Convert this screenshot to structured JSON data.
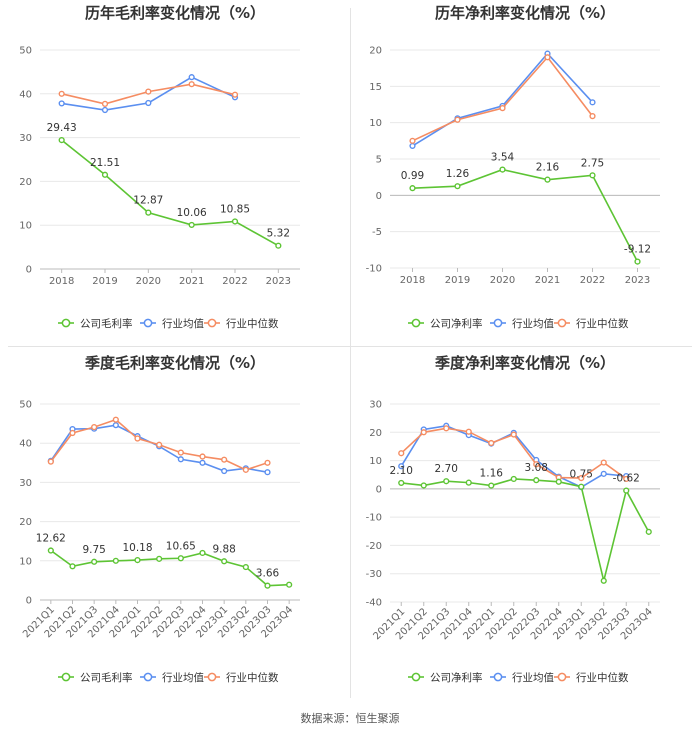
{
  "source": "数据来源：恒生聚源",
  "legend": {
    "company_gross": "公司毛利率",
    "company_net": "公司净利率",
    "industry_avg": "行业均值",
    "industry_median": "行业中位数"
  },
  "colors": {
    "company": "#5dc434",
    "industry_avg": "#5b8ff0",
    "industry_median": "#f58c62",
    "grid": "#e8e8e8",
    "axis": "#bbbbbb"
  },
  "chart_data": [
    {
      "type": "line",
      "title": "历年毛利率变化情况（%）",
      "categories": [
        "2018",
        "2019",
        "2020",
        "2021",
        "2022",
        "2023"
      ],
      "ylim": [
        0,
        50
      ],
      "yticks": [
        0,
        10,
        20,
        30,
        40,
        50
      ],
      "series": [
        {
          "name": "公司毛利率",
          "values": [
            29.43,
            21.51,
            12.87,
            10.06,
            10.85,
            5.32
          ],
          "labels": [
            "29.43",
            "21.51",
            "12.87",
            "10.06",
            "10.85",
            "5.32"
          ]
        },
        {
          "name": "行业均值",
          "values": [
            37.8,
            36.3,
            37.9,
            43.8,
            39.2,
            null
          ]
        },
        {
          "name": "行业中位数",
          "values": [
            40.0,
            37.7,
            40.5,
            42.2,
            39.8,
            null
          ]
        }
      ]
    },
    {
      "type": "line",
      "title": "历年净利率变化情况（%）",
      "categories": [
        "2018",
        "2019",
        "2020",
        "2021",
        "2022",
        "2023"
      ],
      "ylim": [
        -10,
        20
      ],
      "yticks": [
        -10,
        -5,
        0,
        5,
        10,
        15,
        20
      ],
      "series": [
        {
          "name": "公司净利率",
          "values": [
            0.99,
            1.26,
            3.54,
            2.16,
            2.75,
            -9.12
          ],
          "labels": [
            "0.99",
            "1.26",
            "3.54",
            "2.16",
            "2.75",
            "-9.12"
          ]
        },
        {
          "name": "行业均值",
          "values": [
            6.8,
            10.6,
            12.3,
            19.5,
            12.8,
            null
          ]
        },
        {
          "name": "行业中位数",
          "values": [
            7.5,
            10.4,
            12.0,
            19.0,
            10.9,
            null
          ]
        }
      ]
    },
    {
      "type": "line",
      "title": "季度毛利率变化情况（%）",
      "categories": [
        "2021Q1",
        "2021Q2",
        "2021Q3",
        "2021Q4",
        "2022Q1",
        "2022Q2",
        "2022Q3",
        "2022Q4",
        "2023Q1",
        "2023Q2",
        "2023Q3",
        "2023Q4"
      ],
      "ylim": [
        0,
        50
      ],
      "yticks": [
        0,
        10,
        20,
        30,
        40,
        50
      ],
      "series": [
        {
          "name": "公司毛利率",
          "values": [
            12.62,
            8.6,
            9.75,
            10.0,
            10.18,
            10.5,
            10.65,
            12.0,
            9.88,
            8.4,
            3.66,
            3.9
          ],
          "labels": [
            "12.62",
            "",
            "9.75",
            "",
            "10.18",
            "",
            "10.65",
            "",
            "9.88",
            "",
            "3.66",
            ""
          ]
        },
        {
          "name": "行业均值",
          "values": [
            35.5,
            43.6,
            43.7,
            44.6,
            41.8,
            39.2,
            35.9,
            35.0,
            32.9,
            33.6,
            32.6,
            null
          ]
        },
        {
          "name": "行业中位数",
          "values": [
            35.3,
            42.6,
            44.1,
            46.0,
            41.2,
            39.6,
            37.6,
            36.6,
            35.8,
            33.2,
            35.0,
            null
          ]
        }
      ]
    },
    {
      "type": "line",
      "title": "季度净利率变化情况（%）",
      "categories": [
        "2021Q1",
        "2021Q2",
        "2021Q3",
        "2021Q4",
        "2022Q1",
        "2022Q2",
        "2022Q3",
        "2022Q4",
        "2023Q1",
        "2023Q2",
        "2023Q3",
        "2023Q4"
      ],
      "ylim": [
        -40,
        30
      ],
      "yticks": [
        -40,
        -30,
        -20,
        -10,
        0,
        10,
        20,
        30
      ],
      "series": [
        {
          "name": "公司净利率",
          "values": [
            2.1,
            1.2,
            2.7,
            2.2,
            1.16,
            3.5,
            3.08,
            2.5,
            0.75,
            -32.5,
            -0.62,
            -15.2
          ],
          "labels": [
            "2.10",
            "",
            "2.70",
            "",
            "1.16",
            "",
            "3.08",
            "",
            "0.75",
            "",
            "-0.62",
            ""
          ]
        },
        {
          "name": "行业均值",
          "values": [
            8.0,
            21.0,
            22.3,
            19.0,
            16.0,
            19.8,
            10.2,
            4.3,
            0.6,
            5.3,
            4.5,
            null
          ]
        },
        {
          "name": "行业中位数",
          "values": [
            12.6,
            20.0,
            21.4,
            20.2,
            16.2,
            19.2,
            8.7,
            4.0,
            3.8,
            9.3,
            3.5,
            null
          ]
        }
      ]
    }
  ]
}
